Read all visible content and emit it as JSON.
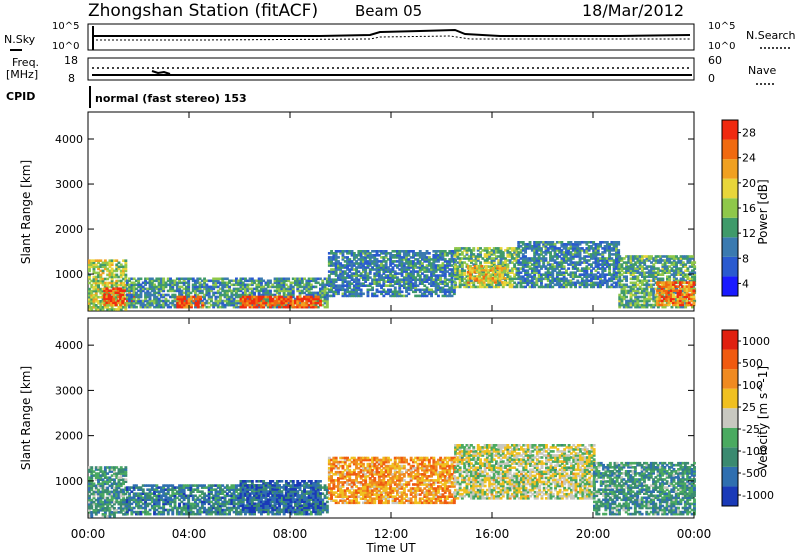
{
  "header": {
    "station": "Zhongshan Station (fitACF)",
    "beam": "Beam 05",
    "date": "18/Mar/2012"
  },
  "top_panels": {
    "nsky_label": "N.Sky",
    "nsearch_label": "N.Search",
    "noise_ticks_left": [
      "10^5",
      "10^0"
    ],
    "noise_ticks_right": [
      "10^5",
      "10^0"
    ],
    "freq_label": "Freq.",
    "freq_unit": "[MHz]",
    "freq_ticks": [
      "18",
      "8"
    ],
    "nave_label": "Nave",
    "nave_ticks": [
      "60",
      "0"
    ],
    "cpid_label": "CPID",
    "cpid_value": "normal (fast stereo) 153"
  },
  "chart_data": [
    {
      "type": "heatmap",
      "name": "power",
      "xlabel": "Time UT",
      "ylabel": "Slant Range [km]",
      "xlim": [
        0,
        24
      ],
      "ylim": [
        180,
        4600
      ],
      "x_ticks": [
        "00:00",
        "04:00",
        "08:00",
        "12:00",
        "16:00",
        "20:00",
        "00:00"
      ],
      "y_ticks": [
        "1000",
        "2000",
        "3000",
        "4000"
      ],
      "colorbar": {
        "label": "Power [dB]",
        "ticks": [
          "28",
          "24",
          "20",
          "16",
          "12",
          "8",
          "4"
        ],
        "range": [
          0,
          30
        ],
        "colors": [
          "#1a1aff",
          "#2a5ad0",
          "#3a7ab0",
          "#3f9a6a",
          "#8fc84a",
          "#e8d63a",
          "#f0a020",
          "#f06a10",
          "#f02a10"
        ]
      },
      "regions": [
        {
          "t0": 0.0,
          "t1": 1.5,
          "r0": 200,
          "r1": 1300,
          "level": 0.55
        },
        {
          "t0": 0.6,
          "t1": 1.8,
          "r0": 300,
          "r1": 700,
          "level": 0.9
        },
        {
          "t0": 1.5,
          "t1": 9.5,
          "r0": 250,
          "r1": 900,
          "level": 0.35
        },
        {
          "t0": 3.5,
          "t1": 4.5,
          "r0": 250,
          "r1": 500,
          "level": 0.9
        },
        {
          "t0": 6.0,
          "t1": 9.2,
          "r0": 250,
          "r1": 500,
          "level": 0.88
        },
        {
          "t0": 9.5,
          "t1": 14.5,
          "r0": 500,
          "r1": 1500,
          "level": 0.3
        },
        {
          "t0": 14.5,
          "t1": 17.0,
          "r0": 700,
          "r1": 1600,
          "level": 0.45
        },
        {
          "t0": 15.0,
          "t1": 16.5,
          "r0": 800,
          "r1": 1200,
          "level": 0.65
        },
        {
          "t0": 17.0,
          "t1": 21.0,
          "r0": 700,
          "r1": 1700,
          "level": 0.3
        },
        {
          "t0": 21.0,
          "t1": 24.0,
          "r0": 250,
          "r1": 1400,
          "level": 0.4
        },
        {
          "t0": 22.5,
          "t1": 24.0,
          "r0": 300,
          "r1": 800,
          "level": 0.8
        }
      ]
    },
    {
      "type": "heatmap",
      "name": "velocity",
      "xlabel": "Time UT",
      "ylabel": "Slant Range [km]",
      "xlim": [
        0,
        24
      ],
      "ylim": [
        180,
        4600
      ],
      "x_ticks": [
        "00:00",
        "04:00",
        "08:00",
        "12:00",
        "16:00",
        "20:00",
        "00:00"
      ],
      "y_ticks": [
        "1000",
        "2000",
        "3000",
        "4000"
      ],
      "colorbar": {
        "label": "Velocity [m s^-1]",
        "ticks": [
          "1000",
          "500",
          "100",
          "25",
          "-25",
          "-100",
          "-500",
          "-1000"
        ],
        "range": [
          -1000,
          1000
        ],
        "colors": [
          "#1a3ab8",
          "#2f6fb0",
          "#3a8a70",
          "#4aaa60",
          "#c8c8c0",
          "#f0c020",
          "#f08a20",
          "#f05a10",
          "#e02010"
        ]
      },
      "regions": [
        {
          "t0": 0.0,
          "t1": 1.5,
          "r0": 200,
          "r1": 1300,
          "level": 0.3
        },
        {
          "t0": 1.5,
          "t1": 9.5,
          "r0": 250,
          "r1": 900,
          "level": 0.25
        },
        {
          "t0": 6.0,
          "t1": 9.2,
          "r0": 300,
          "r1": 1000,
          "level": 0.15
        },
        {
          "t0": 9.5,
          "t1": 14.5,
          "r0": 500,
          "r1": 1500,
          "level": 0.7
        },
        {
          "t0": 14.5,
          "t1": 20.0,
          "r0": 600,
          "r1": 1800,
          "level": 0.5
        },
        {
          "t0": 20.0,
          "t1": 24.0,
          "r0": 250,
          "r1": 1400,
          "level": 0.3
        }
      ]
    }
  ],
  "colors": {
    "axis": "#000000",
    "background": "#ffffff"
  }
}
